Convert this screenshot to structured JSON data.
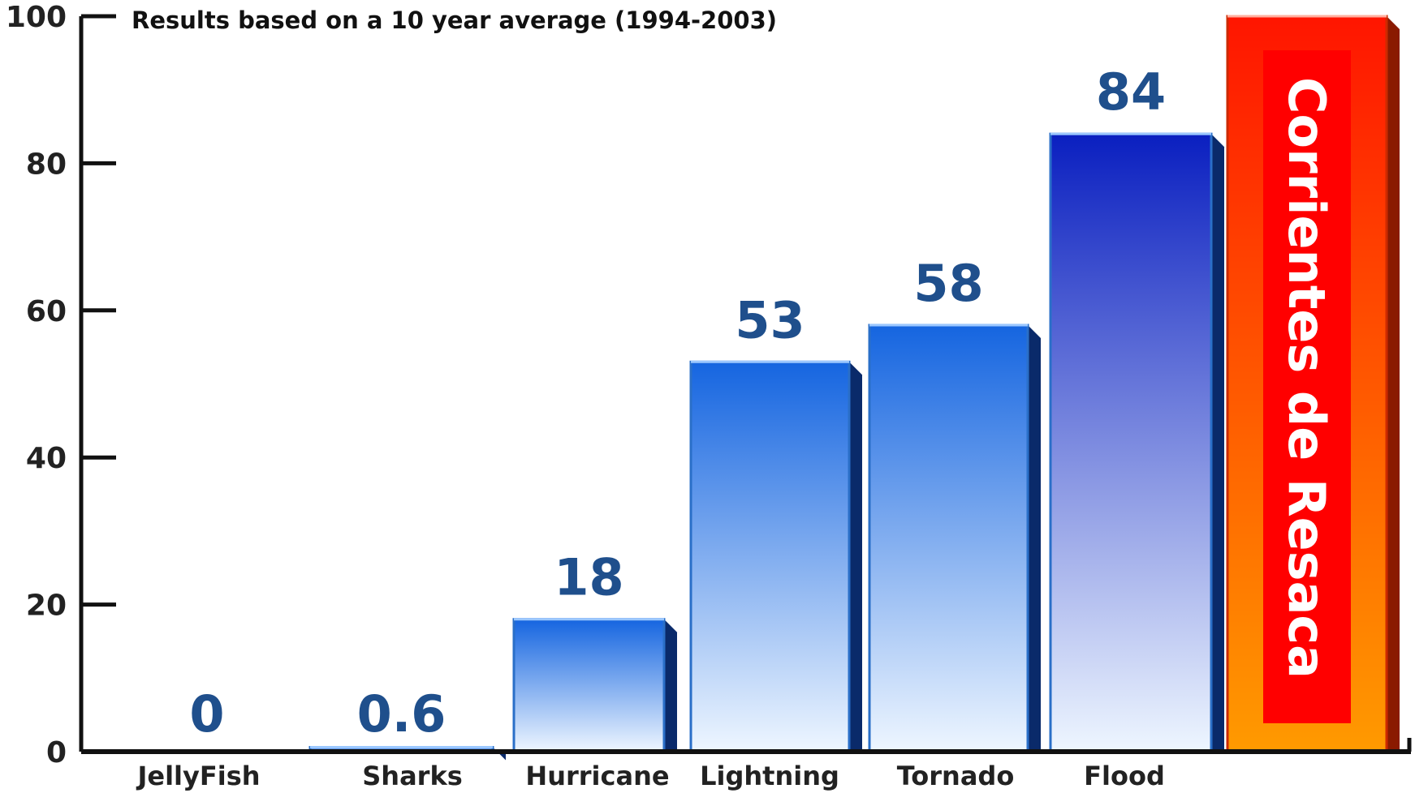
{
  "colors": {
    "axis": "#111111",
    "value_label": "#1f4f8c",
    "category_label": "#222222",
    "bar_top": "#1565e0",
    "bar_bottom": "#eef6ff",
    "bar_top_dark": "#0a1fc0",
    "highlight_fill": "#ff0000",
    "highlight_text": "#ffffff",
    "highlight_bar_top": "#ff1500",
    "highlight_bar_bottom": "#ff9a00"
  },
  "chart_data": {
    "type": "bar",
    "title": "Results based on a 10 year average (1994-2003)",
    "xlabel": "",
    "ylabel": "",
    "ylim": [
      0,
      100
    ],
    "yticks": [
      "0",
      "20",
      "40",
      "60",
      "80",
      "100"
    ],
    "grid": false,
    "categories": [
      "JellyFish",
      "Sharks",
      "Hurricane",
      "Lightning",
      "Tornado",
      "Flood",
      ""
    ],
    "values": [
      0,
      0.6,
      18,
      53,
      58,
      84,
      100
    ],
    "value_labels": [
      "0",
      "0.6",
      "18",
      "53",
      "58",
      "84",
      ""
    ],
    "highlight": {
      "index": 6,
      "label": "Corrientes de Resaca"
    }
  }
}
